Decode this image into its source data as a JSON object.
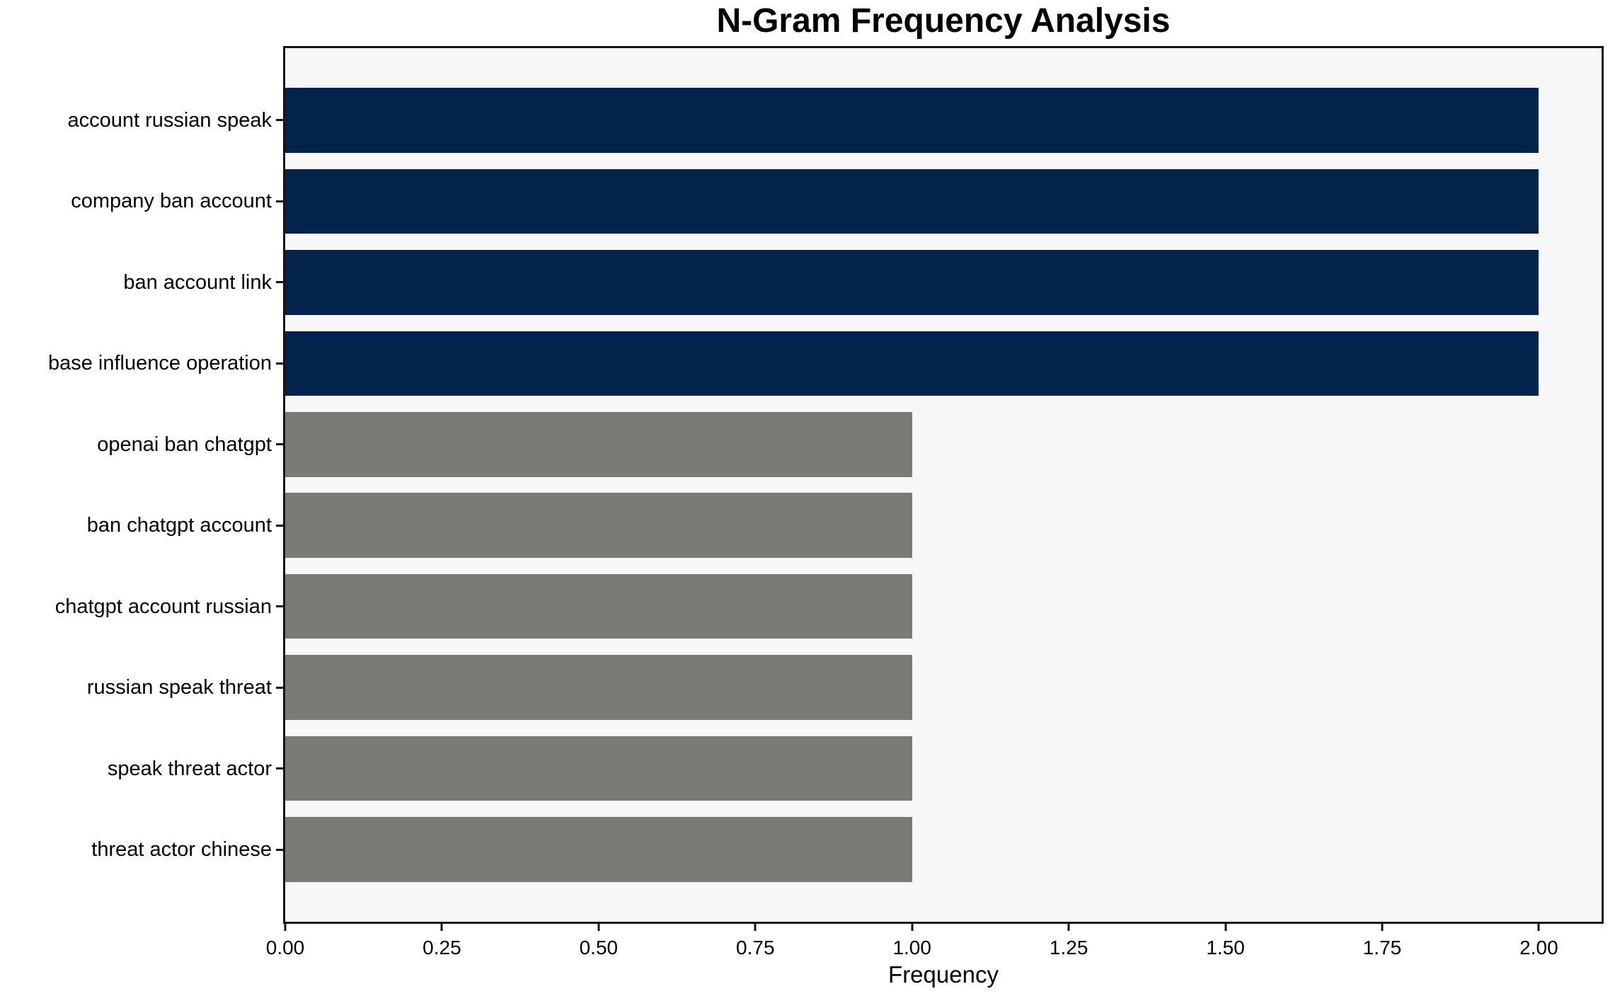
{
  "chart_data": {
    "type": "bar",
    "orientation": "horizontal",
    "title": "N-Gram Frequency Analysis",
    "xlabel": "Frequency",
    "ylabel": "",
    "categories": [
      "account russian speak",
      "company ban account",
      "ban account link",
      "base influence operation",
      "openai ban chatgpt",
      "ban chatgpt account",
      "chatgpt account russian",
      "russian speak threat",
      "speak threat actor",
      "threat actor chinese"
    ],
    "values": [
      2,
      2,
      2,
      2,
      1,
      1,
      1,
      1,
      1,
      1
    ],
    "bar_colors": [
      "#02234c",
      "#02234c",
      "#02234c",
      "#02234c",
      "#7a7a77",
      "#7a7a77",
      "#7a7a77",
      "#7a7a77",
      "#7a7a77",
      "#7a7a77"
    ],
    "xlim": [
      0,
      2.1
    ],
    "xticks": [
      0,
      0.25,
      0.5,
      0.75,
      1.0,
      1.25,
      1.5,
      1.75,
      2.0
    ],
    "xtick_labels": [
      "0.00",
      "0.25",
      "0.50",
      "0.75",
      "1.00",
      "1.25",
      "1.50",
      "1.75",
      "2.00"
    ],
    "grid": false,
    "legend": null,
    "colors": {
      "highlight_bar": "#02234c",
      "base_bar": "#7a7a77",
      "plot_background": "#f7f7f7",
      "figure_background": "#ffffff",
      "spine": "#141414",
      "text": "#000000"
    }
  }
}
